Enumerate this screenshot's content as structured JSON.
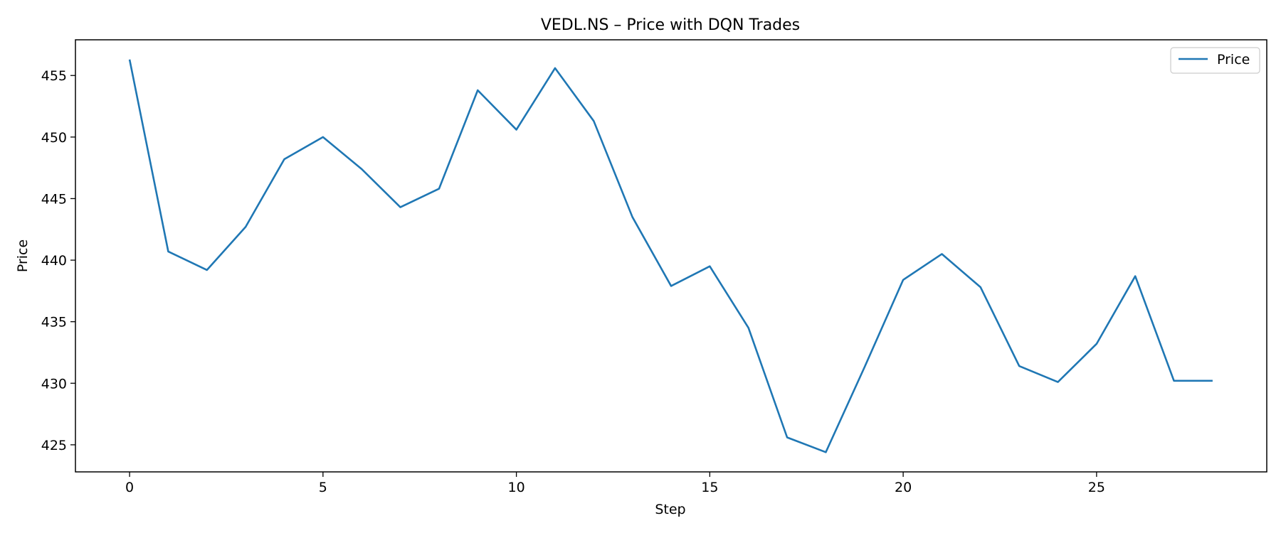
{
  "chart_data": {
    "type": "line",
    "title": "VEDL.NS – Price with DQN Trades",
    "xlabel": "Step",
    "ylabel": "Price",
    "xlim": [
      -1.4,
      29.4
    ],
    "ylim": [
      422.8,
      457.9
    ],
    "xticks": [
      0,
      5,
      10,
      15,
      20,
      25
    ],
    "yticks": [
      425,
      430,
      435,
      440,
      445,
      450,
      455
    ],
    "grid": false,
    "legend": "top-right",
    "series": [
      {
        "name": "Price",
        "color": "#1f77b4",
        "x": [
          0,
          1,
          2,
          3,
          4,
          5,
          6,
          7,
          8,
          9,
          10,
          11,
          12,
          13,
          14,
          15,
          16,
          17,
          18,
          19,
          20,
          21,
          22,
          23,
          24,
          25,
          26,
          27,
          28
        ],
        "y": [
          456.3,
          440.7,
          439.2,
          442.7,
          448.2,
          450.0,
          447.4,
          444.3,
          445.8,
          453.8,
          450.6,
          455.6,
          451.3,
          443.5,
          437.9,
          439.5,
          434.5,
          425.6,
          424.4,
          431.3,
          438.4,
          440.5,
          437.8,
          431.4,
          430.1,
          433.2,
          438.7,
          430.2,
          430.2
        ]
      }
    ]
  }
}
